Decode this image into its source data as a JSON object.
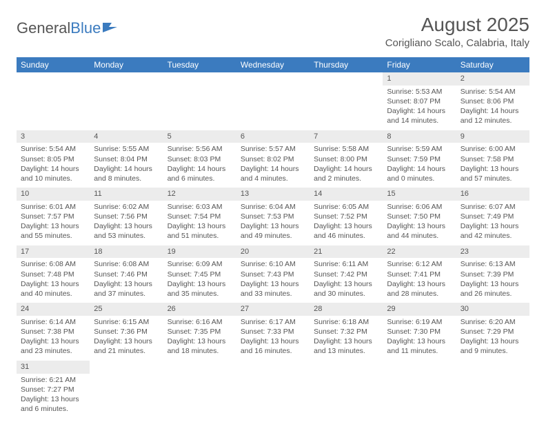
{
  "logo": {
    "text1": "General",
    "text2": "Blue"
  },
  "title": "August 2025",
  "location": "Corigliano Scalo, Calabria, Italy",
  "colors": {
    "header_bg": "#3b7bbf",
    "daynum_bg": "#ececec",
    "text": "#555555",
    "white": "#ffffff"
  },
  "weekdays": [
    "Sunday",
    "Monday",
    "Tuesday",
    "Wednesday",
    "Thursday",
    "Friday",
    "Saturday"
  ],
  "weeks": [
    [
      null,
      null,
      null,
      null,
      null,
      {
        "n": "1",
        "sunrise": "Sunrise: 5:53 AM",
        "sunset": "Sunset: 8:07 PM",
        "day1": "Daylight: 14 hours",
        "day2": "and 14 minutes."
      },
      {
        "n": "2",
        "sunrise": "Sunrise: 5:54 AM",
        "sunset": "Sunset: 8:06 PM",
        "day1": "Daylight: 14 hours",
        "day2": "and 12 minutes."
      }
    ],
    [
      {
        "n": "3",
        "sunrise": "Sunrise: 5:54 AM",
        "sunset": "Sunset: 8:05 PM",
        "day1": "Daylight: 14 hours",
        "day2": "and 10 minutes."
      },
      {
        "n": "4",
        "sunrise": "Sunrise: 5:55 AM",
        "sunset": "Sunset: 8:04 PM",
        "day1": "Daylight: 14 hours",
        "day2": "and 8 minutes."
      },
      {
        "n": "5",
        "sunrise": "Sunrise: 5:56 AM",
        "sunset": "Sunset: 8:03 PM",
        "day1": "Daylight: 14 hours",
        "day2": "and 6 minutes."
      },
      {
        "n": "6",
        "sunrise": "Sunrise: 5:57 AM",
        "sunset": "Sunset: 8:02 PM",
        "day1": "Daylight: 14 hours",
        "day2": "and 4 minutes."
      },
      {
        "n": "7",
        "sunrise": "Sunrise: 5:58 AM",
        "sunset": "Sunset: 8:00 PM",
        "day1": "Daylight: 14 hours",
        "day2": "and 2 minutes."
      },
      {
        "n": "8",
        "sunrise": "Sunrise: 5:59 AM",
        "sunset": "Sunset: 7:59 PM",
        "day1": "Daylight: 14 hours",
        "day2": "and 0 minutes."
      },
      {
        "n": "9",
        "sunrise": "Sunrise: 6:00 AM",
        "sunset": "Sunset: 7:58 PM",
        "day1": "Daylight: 13 hours",
        "day2": "and 57 minutes."
      }
    ],
    [
      {
        "n": "10",
        "sunrise": "Sunrise: 6:01 AM",
        "sunset": "Sunset: 7:57 PM",
        "day1": "Daylight: 13 hours",
        "day2": "and 55 minutes."
      },
      {
        "n": "11",
        "sunrise": "Sunrise: 6:02 AM",
        "sunset": "Sunset: 7:56 PM",
        "day1": "Daylight: 13 hours",
        "day2": "and 53 minutes."
      },
      {
        "n": "12",
        "sunrise": "Sunrise: 6:03 AM",
        "sunset": "Sunset: 7:54 PM",
        "day1": "Daylight: 13 hours",
        "day2": "and 51 minutes."
      },
      {
        "n": "13",
        "sunrise": "Sunrise: 6:04 AM",
        "sunset": "Sunset: 7:53 PM",
        "day1": "Daylight: 13 hours",
        "day2": "and 49 minutes."
      },
      {
        "n": "14",
        "sunrise": "Sunrise: 6:05 AM",
        "sunset": "Sunset: 7:52 PM",
        "day1": "Daylight: 13 hours",
        "day2": "and 46 minutes."
      },
      {
        "n": "15",
        "sunrise": "Sunrise: 6:06 AM",
        "sunset": "Sunset: 7:50 PM",
        "day1": "Daylight: 13 hours",
        "day2": "and 44 minutes."
      },
      {
        "n": "16",
        "sunrise": "Sunrise: 6:07 AM",
        "sunset": "Sunset: 7:49 PM",
        "day1": "Daylight: 13 hours",
        "day2": "and 42 minutes."
      }
    ],
    [
      {
        "n": "17",
        "sunrise": "Sunrise: 6:08 AM",
        "sunset": "Sunset: 7:48 PM",
        "day1": "Daylight: 13 hours",
        "day2": "and 40 minutes."
      },
      {
        "n": "18",
        "sunrise": "Sunrise: 6:08 AM",
        "sunset": "Sunset: 7:46 PM",
        "day1": "Daylight: 13 hours",
        "day2": "and 37 minutes."
      },
      {
        "n": "19",
        "sunrise": "Sunrise: 6:09 AM",
        "sunset": "Sunset: 7:45 PM",
        "day1": "Daylight: 13 hours",
        "day2": "and 35 minutes."
      },
      {
        "n": "20",
        "sunrise": "Sunrise: 6:10 AM",
        "sunset": "Sunset: 7:43 PM",
        "day1": "Daylight: 13 hours",
        "day2": "and 33 minutes."
      },
      {
        "n": "21",
        "sunrise": "Sunrise: 6:11 AM",
        "sunset": "Sunset: 7:42 PM",
        "day1": "Daylight: 13 hours",
        "day2": "and 30 minutes."
      },
      {
        "n": "22",
        "sunrise": "Sunrise: 6:12 AM",
        "sunset": "Sunset: 7:41 PM",
        "day1": "Daylight: 13 hours",
        "day2": "and 28 minutes."
      },
      {
        "n": "23",
        "sunrise": "Sunrise: 6:13 AM",
        "sunset": "Sunset: 7:39 PM",
        "day1": "Daylight: 13 hours",
        "day2": "and 26 minutes."
      }
    ],
    [
      {
        "n": "24",
        "sunrise": "Sunrise: 6:14 AM",
        "sunset": "Sunset: 7:38 PM",
        "day1": "Daylight: 13 hours",
        "day2": "and 23 minutes."
      },
      {
        "n": "25",
        "sunrise": "Sunrise: 6:15 AM",
        "sunset": "Sunset: 7:36 PM",
        "day1": "Daylight: 13 hours",
        "day2": "and 21 minutes."
      },
      {
        "n": "26",
        "sunrise": "Sunrise: 6:16 AM",
        "sunset": "Sunset: 7:35 PM",
        "day1": "Daylight: 13 hours",
        "day2": "and 18 minutes."
      },
      {
        "n": "27",
        "sunrise": "Sunrise: 6:17 AM",
        "sunset": "Sunset: 7:33 PM",
        "day1": "Daylight: 13 hours",
        "day2": "and 16 minutes."
      },
      {
        "n": "28",
        "sunrise": "Sunrise: 6:18 AM",
        "sunset": "Sunset: 7:32 PM",
        "day1": "Daylight: 13 hours",
        "day2": "and 13 minutes."
      },
      {
        "n": "29",
        "sunrise": "Sunrise: 6:19 AM",
        "sunset": "Sunset: 7:30 PM",
        "day1": "Daylight: 13 hours",
        "day2": "and 11 minutes."
      },
      {
        "n": "30",
        "sunrise": "Sunrise: 6:20 AM",
        "sunset": "Sunset: 7:29 PM",
        "day1": "Daylight: 13 hours",
        "day2": "and 9 minutes."
      }
    ],
    [
      {
        "n": "31",
        "sunrise": "Sunrise: 6:21 AM",
        "sunset": "Sunset: 7:27 PM",
        "day1": "Daylight: 13 hours",
        "day2": "and 6 minutes."
      },
      null,
      null,
      null,
      null,
      null,
      null
    ]
  ]
}
